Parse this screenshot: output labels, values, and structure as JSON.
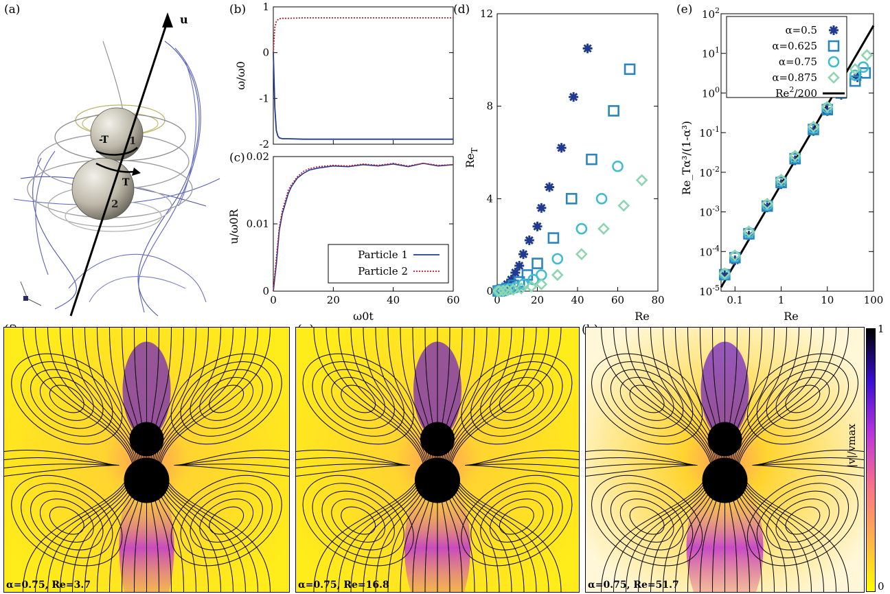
{
  "labels": {
    "a": "(a)",
    "b": "(b)",
    "c": "(c)",
    "d": "(d)",
    "e": "(e)",
    "f": "(f)",
    "g": "(g)",
    "h": "(h)"
  },
  "panel_a": {
    "u_label": "u",
    "particle1": "1",
    "particle2": "2",
    "torque_top": "-T",
    "torque_bottom": "T"
  },
  "chart_data": [
    {
      "id": "b",
      "type": "line",
      "ylabel": "ω/ω0",
      "xlim": [
        0,
        60
      ],
      "ylim": [
        -2,
        1
      ],
      "yticks": [
        "1",
        "0",
        "-1",
        "-2"
      ],
      "series": [
        {
          "name": "Particle 1",
          "color": "#1f3a93",
          "style": "solid",
          "x": [
            0,
            0.5,
            1,
            1.5,
            2,
            3,
            5,
            10,
            20,
            30,
            40,
            50,
            60
          ],
          "y": [
            0,
            -1.2,
            -1.7,
            -1.82,
            -1.86,
            -1.88,
            -1.88,
            -1.89,
            -1.89,
            -1.89,
            -1.89,
            -1.89,
            -1.89
          ]
        },
        {
          "name": "Particle 2",
          "color": "#c0182b",
          "style": "dotted",
          "x": [
            0,
            0.5,
            1,
            1.5,
            2,
            3,
            5,
            10,
            20,
            30,
            40,
            50,
            60
          ],
          "y": [
            0,
            0.55,
            0.68,
            0.72,
            0.74,
            0.75,
            0.75,
            0.76,
            0.76,
            0.76,
            0.76,
            0.76,
            0.76
          ]
        }
      ]
    },
    {
      "id": "c",
      "type": "line",
      "xlabel": "ω0t",
      "ylabel": "u/ω0R",
      "xlim": [
        0,
        60
      ],
      "ylim": [
        0,
        0.02
      ],
      "xticks": [
        "0",
        "20",
        "40",
        "60"
      ],
      "yticks": [
        "0",
        "0.01",
        "0.02"
      ],
      "legend": [
        "Particle 1",
        "Particle 2"
      ],
      "series": [
        {
          "name": "Particle 1",
          "color": "#1f3a93",
          "style": "solid",
          "x": [
            0,
            1,
            2,
            3,
            4,
            5,
            6,
            8,
            10,
            12,
            15,
            20,
            25,
            30,
            35,
            40,
            45,
            50,
            55,
            60
          ],
          "y": [
            0,
            0.004,
            0.009,
            0.0115,
            0.013,
            0.0145,
            0.0155,
            0.0168,
            0.0175,
            0.018,
            0.0183,
            0.0186,
            0.0185,
            0.0188,
            0.0186,
            0.0189,
            0.0185,
            0.019,
            0.0186,
            0.0188
          ]
        },
        {
          "name": "Particle 2",
          "color": "#c0182b",
          "style": "dotted",
          "x": [
            0,
            1,
            2,
            3,
            4,
            5,
            6,
            8,
            10,
            12,
            15,
            20,
            25,
            30,
            35,
            40,
            45,
            50,
            55,
            60
          ],
          "y": [
            0,
            0.005,
            0.0095,
            0.012,
            0.0135,
            0.015,
            0.0158,
            0.017,
            0.0178,
            0.0182,
            0.0185,
            0.0187,
            0.0186,
            0.0189,
            0.0187,
            0.019,
            0.0186,
            0.019,
            0.0187,
            0.0188
          ]
        }
      ]
    },
    {
      "id": "d",
      "type": "scatter",
      "xlabel": "Re",
      "ylabel": "Re_T",
      "xlim": [
        0,
        80
      ],
      "ylim": [
        0,
        12
      ],
      "xticks": [
        "0",
        "20",
        "40",
        "60",
        "80"
      ],
      "yticks": [
        "0",
        "4",
        "8",
        "12"
      ],
      "series": [
        {
          "name": "α=0.5",
          "marker": "star",
          "color": "#1f3a8f",
          "x": [
            0.5,
            1,
            2,
            3,
            4,
            5,
            7,
            9,
            11,
            13,
            16,
            20,
            22,
            26,
            32,
            38,
            45
          ],
          "y": [
            0.01,
            0.03,
            0.06,
            0.12,
            0.2,
            0.3,
            0.5,
            0.8,
            1.1,
            1.6,
            2.2,
            2.8,
            3.6,
            4.5,
            6.2,
            8.4,
            10.5
          ]
        },
        {
          "name": "α=0.625",
          "marker": "square",
          "color": "#2a85bf",
          "x": [
            0.5,
            1,
            2,
            3,
            5,
            8,
            11,
            15,
            20,
            28,
            37,
            47,
            58,
            66
          ],
          "y": [
            0.005,
            0.01,
            0.03,
            0.06,
            0.12,
            0.25,
            0.4,
            0.7,
            1.2,
            2.3,
            4.0,
            5.7,
            7.8,
            9.6
          ]
        },
        {
          "name": "α=0.75",
          "marker": "circle",
          "color": "#3fbcd2",
          "x": [
            0.5,
            1,
            2,
            4,
            6,
            9,
            13,
            18,
            22,
            30,
            42,
            52,
            60
          ],
          "y": [
            0.003,
            0.007,
            0.02,
            0.05,
            0.09,
            0.15,
            0.3,
            0.5,
            0.7,
            1.4,
            2.7,
            4.0,
            5.4
          ]
        },
        {
          "name": "α=0.875",
          "marker": "diamond",
          "color": "#8fd4b0",
          "x": [
            0.5,
            1,
            3,
            5,
            8,
            12,
            17,
            22,
            30,
            42,
            53,
            63,
            72
          ],
          "y": [
            0.002,
            0.004,
            0.02,
            0.04,
            0.07,
            0.12,
            0.2,
            0.3,
            0.7,
            1.6,
            2.7,
            3.7,
            4.8
          ]
        }
      ]
    },
    {
      "id": "e",
      "type": "scatter",
      "scale": "log-log",
      "xlabel": "Re",
      "ylabel": "Re_Tα³/(1-α³)",
      "xlim": [
        0.05,
        100
      ],
      "ylim": [
        1e-05,
        100
      ],
      "xticks": [
        "0.1",
        "1",
        "10",
        "100"
      ],
      "yticks": [
        "10-5",
        "10-4",
        "10-3",
        "10-2",
        "10-1",
        "100",
        "101",
        "102"
      ],
      "legend": [
        "α=0.5",
        "α=0.625",
        "α=0.75",
        "α=0.875",
        "Re2/200"
      ],
      "line": {
        "name": "Re2/200",
        "color": "#000000",
        "coef": 0.005,
        "power": 2
      },
      "series": [
        {
          "name": "α=0.5",
          "marker": "star",
          "color": "#1f3a8f",
          "x": [
            0.06,
            0.1,
            0.2,
            0.5,
            1,
            2,
            5,
            10,
            20,
            45
          ],
          "y": [
            2.5e-05,
            6e-05,
            0.00025,
            0.0013,
            0.005,
            0.02,
            0.11,
            0.35,
            0.9,
            2.5
          ]
        },
        {
          "name": "α=0.625",
          "marker": "square",
          "color": "#2a85bf",
          "x": [
            0.06,
            0.1,
            0.2,
            0.5,
            1,
            2,
            5,
            10,
            20,
            40,
            66
          ],
          "y": [
            2.6e-05,
            7e-05,
            0.00028,
            0.0014,
            0.0055,
            0.022,
            0.12,
            0.38,
            1.0,
            2.0,
            3.2
          ]
        },
        {
          "name": "α=0.75",
          "marker": "circle",
          "color": "#3fbcd2",
          "x": [
            0.06,
            0.1,
            0.2,
            0.5,
            1,
            2,
            5,
            10,
            20,
            40,
            60
          ],
          "y": [
            2.7e-05,
            7.5e-05,
            0.0003,
            0.0015,
            0.006,
            0.024,
            0.13,
            0.42,
            1.2,
            2.8,
            4.5
          ]
        },
        {
          "name": "α=0.875",
          "marker": "diamond",
          "color": "#8fd4b0",
          "x": [
            0.06,
            0.1,
            0.2,
            0.5,
            1,
            2,
            5,
            10,
            20,
            40,
            72
          ],
          "y": [
            2.8e-05,
            8e-05,
            0.00032,
            0.0016,
            0.0065,
            0.026,
            0.14,
            0.45,
            1.4,
            4.0,
            9.0
          ]
        }
      ]
    }
  ],
  "fields": {
    "f": {
      "caption": "α=0.75, Re=3.7"
    },
    "g": {
      "caption": "α=0.75, Re=16.8"
    },
    "h": {
      "caption": "α=0.75, Re=51.7"
    },
    "colorbar": {
      "label": "|v|/vmax",
      "top": "1",
      "bottom": "0",
      "stops": [
        "#ffff00",
        "#ffb14e",
        "#f8738a",
        "#b937d9",
        "#3a0fd0",
        "#000000"
      ]
    }
  }
}
